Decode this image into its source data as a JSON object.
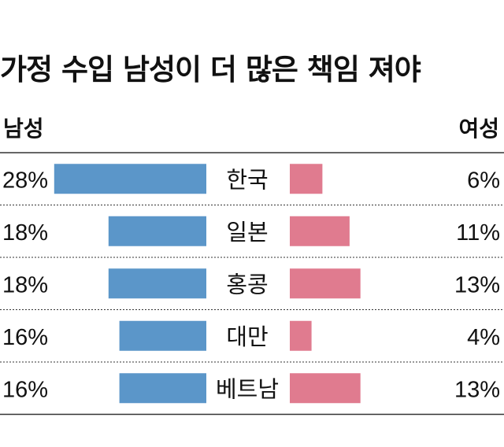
{
  "colors": {
    "male": "#5b96c9",
    "female": "#e07b8f",
    "rule": "#333333"
  },
  "chart_data": {
    "type": "bar",
    "title": "가정 수입 남성이 더 많은 책임 져야",
    "categories": [
      "한국",
      "일본",
      "홍콩",
      "대만",
      "베트남"
    ],
    "series": [
      {
        "name": "남성",
        "values": [
          28,
          18,
          18,
          16,
          16
        ],
        "labels": [
          "28%",
          "18%",
          "18%",
          "16%",
          "16%"
        ]
      },
      {
        "name": "여성",
        "values": [
          6,
          11,
          13,
          4,
          13
        ],
        "labels": [
          "6%",
          "11%",
          "13%",
          "4%",
          "13%"
        ]
      }
    ],
    "unit": "%",
    "layout": "butterfly",
    "grid": false
  }
}
